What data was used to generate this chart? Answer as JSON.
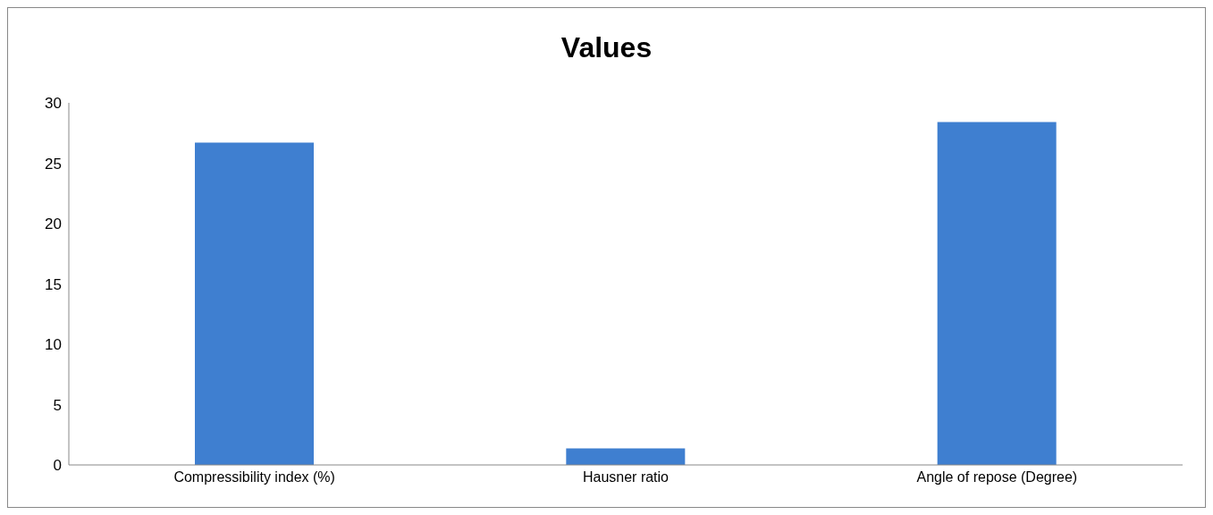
{
  "chart_data": {
    "type": "bar",
    "title": "Values",
    "categories": [
      "Compressibility index (%)",
      "Hausner ratio",
      "Angle of repose (Degree)"
    ],
    "values": [
      26.7,
      1.37,
      28.4
    ],
    "color": "#3f7fd0",
    "ylim": [
      0,
      30
    ],
    "yticks": [
      0,
      5,
      10,
      15,
      20,
      25,
      30
    ],
    "grid": false
  }
}
